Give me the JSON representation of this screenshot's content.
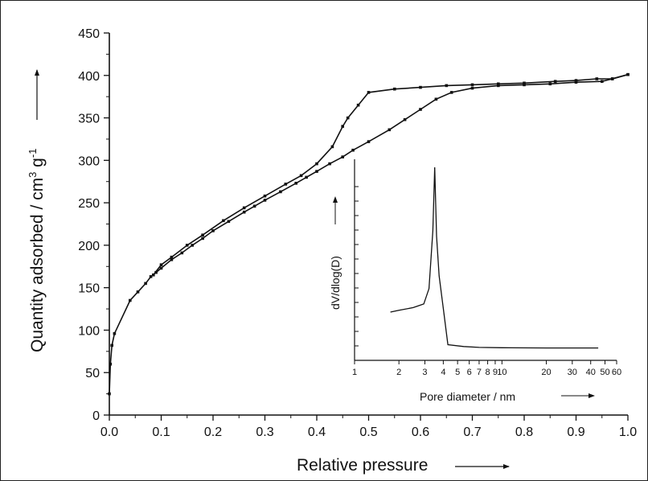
{
  "chart_data": [
    {
      "type": "line",
      "role": "main",
      "xlabel": "Relative pressure",
      "ylabel_parts": {
        "base": "Quantity adsorbed / cm",
        "sup1": "3",
        "mid": " g",
        "sup2": "-1"
      },
      "xlim": [
        0.0,
        1.0
      ],
      "ylim": [
        0,
        450
      ],
      "x_ticks": [
        "0.0",
        "0.1",
        "0.2",
        "0.3",
        "0.4",
        "0.5",
        "0.6",
        "0.7",
        "0.8",
        "0.9",
        "1.0"
      ],
      "y_ticks": [
        "0",
        "50",
        "100",
        "150",
        "200",
        "250",
        "300",
        "350",
        "400",
        "450"
      ],
      "series": [
        {
          "points": [
            [
              0.0,
              25
            ],
            [
              0.002,
              60
            ],
            [
              0.005,
              82
            ],
            [
              0.01,
              96
            ],
            [
              0.04,
              135
            ],
            [
              0.055,
              145
            ],
            [
              0.07,
              155
            ],
            [
              0.08,
              163
            ],
            [
              0.09,
              168
            ],
            [
              0.1,
              173
            ],
            [
              0.12,
              183
            ],
            [
              0.14,
              191
            ],
            [
              0.16,
              200
            ],
            [
              0.18,
              208
            ],
            [
              0.2,
              217
            ],
            [
              0.23,
              228
            ],
            [
              0.26,
              239
            ],
            [
              0.28,
              246
            ],
            [
              0.3,
              253
            ],
            [
              0.33,
              263
            ],
            [
              0.36,
              273
            ],
            [
              0.38,
              280
            ],
            [
              0.4,
              287
            ],
            [
              0.425,
              296
            ],
            [
              0.45,
              304
            ],
            [
              0.47,
              312
            ],
            [
              0.5,
              322
            ],
            [
              0.54,
              336
            ],
            [
              0.57,
              348
            ],
            [
              0.6,
              360
            ],
            [
              0.63,
              372
            ],
            [
              0.66,
              380
            ],
            [
              0.7,
              385
            ],
            [
              0.75,
              388
            ],
            [
              0.8,
              389
            ],
            [
              0.85,
              390
            ],
            [
              0.9,
              392
            ],
            [
              0.95,
              393
            ],
            [
              0.97,
              396
            ],
            [
              1.0,
              401
            ]
          ]
        },
        {
          "points": [
            [
              1.0,
              401
            ],
            [
              0.97,
              396
            ],
            [
              0.94,
              396
            ],
            [
              0.9,
              394
            ],
            [
              0.86,
              393
            ],
            [
              0.8,
              391
            ],
            [
              0.75,
              390
            ],
            [
              0.7,
              389
            ],
            [
              0.65,
              388
            ],
            [
              0.6,
              386
            ],
            [
              0.55,
              384
            ],
            [
              0.5,
              380
            ],
            [
              0.48,
              365
            ],
            [
              0.46,
              350
            ],
            [
              0.45,
              340
            ],
            [
              0.43,
              316
            ],
            [
              0.4,
              296
            ],
            [
              0.37,
              282
            ],
            [
              0.34,
              272
            ],
            [
              0.3,
              258
            ],
            [
              0.26,
              244
            ],
            [
              0.22,
              229
            ],
            [
              0.18,
              212
            ],
            [
              0.15,
              200
            ],
            [
              0.12,
              186
            ],
            [
              0.1,
              177
            ],
            [
              0.085,
              165
            ]
          ]
        }
      ]
    },
    {
      "type": "line",
      "role": "inset",
      "xlabel": "Pore diameter / nm",
      "ylabel": "dV/dlog(D)",
      "x_scale": "log",
      "xlim": [
        1,
        60
      ],
      "y_tick_labels_shown": false,
      "x_ticks": [
        {
          "v": 1,
          "label": "1"
        },
        {
          "v": 2,
          "label": "2"
        },
        {
          "v": 3,
          "label": "3"
        },
        {
          "v": 4,
          "label": "4"
        },
        {
          "v": 5,
          "label": "5"
        },
        {
          "v": 6,
          "label": "6"
        },
        {
          "v": 7,
          "label": "7"
        },
        {
          "v": 8,
          "label": "8"
        },
        {
          "v": 9,
          "label": "9"
        },
        {
          "v": 10,
          "label": "10"
        },
        {
          "v": 20,
          "label": "20"
        },
        {
          "v": 30,
          "label": "30"
        },
        {
          "v": 40,
          "label": "40"
        },
        {
          "v": 50,
          "label": "50"
        },
        {
          "v": 60,
          "label": "60"
        }
      ],
      "series": [
        {
          "points": [
            [
              1.75,
              0.2
            ],
            [
              2.0,
              0.21
            ],
            [
              2.5,
              0.225
            ],
            [
              2.95,
              0.245
            ],
            [
              3.2,
              0.33
            ],
            [
              3.4,
              0.65
            ],
            [
              3.5,
              1.0
            ],
            [
              3.6,
              0.62
            ],
            [
              3.75,
              0.4
            ],
            [
              4.0,
              0.22
            ],
            [
              4.3,
              0.02
            ],
            [
              5.5,
              0.01
            ],
            [
              7,
              0.005
            ],
            [
              10,
              0.003
            ],
            [
              20,
              0.002
            ],
            [
              30,
              0.002
            ],
            [
              45,
              0.002
            ]
          ]
        }
      ]
    }
  ]
}
